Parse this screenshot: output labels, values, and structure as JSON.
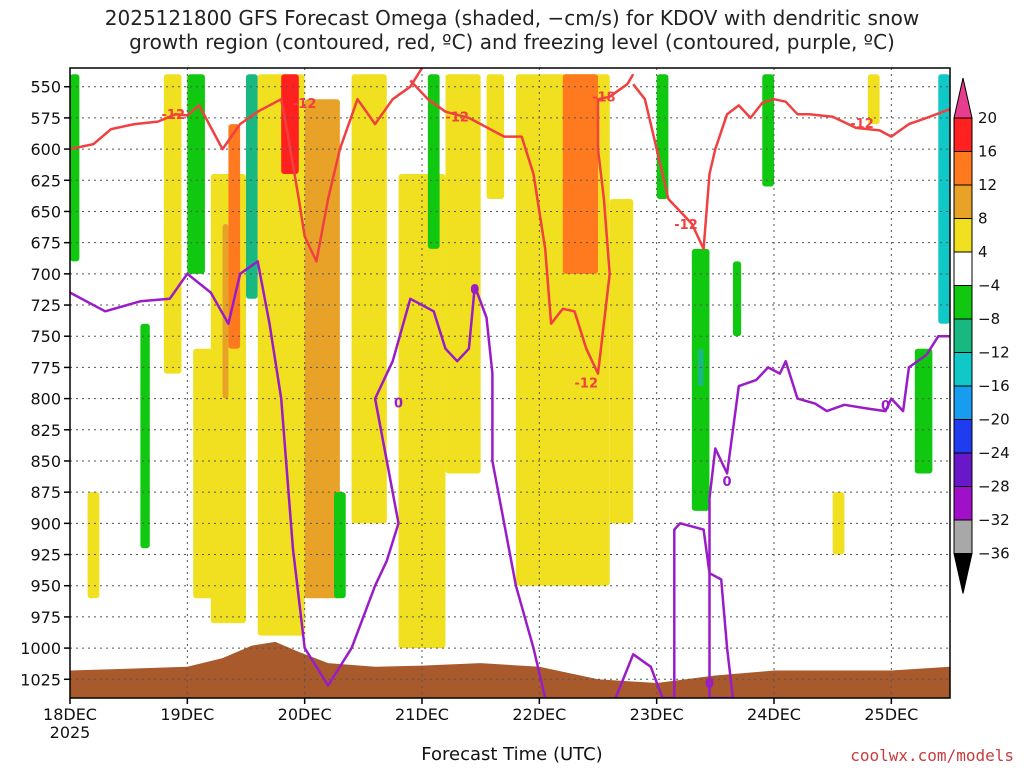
{
  "chart_data": {
    "type": "heatmap",
    "title_lines": [
      "2025121800 GFS Forecast Omega (shaded, −cm/s) for KDOV with dendritic snow",
      "growth region (contoured, red, ºC) and freezing level (contoured, purple, ºC)"
    ],
    "xlabel": "Forecast Time (UTC)",
    "credit": "coolwx.com/models",
    "x_ticks": [
      {
        "label": "18DEC",
        "sub": "2025",
        "day": 0
      },
      {
        "label": "19DEC",
        "day": 1
      },
      {
        "label": "20DEC",
        "day": 2
      },
      {
        "label": "21DEC",
        "day": 3
      },
      {
        "label": "22DEC",
        "day": 4
      },
      {
        "label": "23DEC",
        "day": 5
      },
      {
        "label": "24DEC",
        "day": 6
      },
      {
        "label": "25DEC",
        "day": 7
      }
    ],
    "xlim": [
      0,
      7.5
    ],
    "y_levels": [
      550,
      575,
      600,
      625,
      650,
      675,
      700,
      725,
      750,
      775,
      800,
      825,
      850,
      875,
      900,
      925,
      950,
      975,
      1000,
      1025
    ],
    "ylim": [
      535,
      1040
    ],
    "colorbar": {
      "ticks": [
        "20",
        "16",
        "12",
        "8",
        "4",
        "−4",
        "−8",
        "−12",
        "−16",
        "−20",
        "−24",
        "−28",
        "−32",
        "−36"
      ],
      "colors": [
        "#ff2020",
        "#ff7a1e",
        "#e8a228",
        "#f0e020",
        "#ffffff",
        "#10c810",
        "#18b880",
        "#10c8c8",
        "#189cf0",
        "#1f3cf0",
        "#6818c8",
        "#a010c8",
        "#a8a8a8"
      ],
      "top_arrow_color": "#e83c8c",
      "bottom_arrow_color": "#000000"
    },
    "contour_labels": {
      "dgz": [
        "-12",
        "-12",
        "-12",
        "-18",
        "-12",
        "-12",
        "-12"
      ],
      "freezing": [
        "0",
        "0",
        "0",
        "0",
        "0"
      ]
    },
    "dgz_upper_12": [
      [
        0,
        600
      ],
      [
        0.2,
        596
      ],
      [
        0.35,
        584
      ],
      [
        0.55,
        580
      ],
      [
        0.75,
        578
      ],
      [
        0.9,
        572
      ],
      [
        1.0,
        573
      ],
      [
        1.1,
        565
      ],
      [
        1.3,
        600
      ],
      [
        1.45,
        580
      ],
      [
        1.6,
        570
      ],
      [
        1.8,
        560
      ],
      [
        1.85,
        585
      ],
      [
        1.95,
        640
      ],
      [
        2.0,
        670
      ],
      [
        2.1,
        690
      ],
      [
        2.2,
        640
      ],
      [
        2.3,
        600
      ],
      [
        2.45,
        560
      ],
      [
        2.6,
        580
      ],
      [
        2.75,
        560
      ],
      [
        2.9,
        550
      ],
      [
        3.0,
        535
      ]
    ],
    "dgz_mid_12": [
      [
        2.9,
        545
      ],
      [
        3.05,
        560
      ],
      [
        3.2,
        570
      ],
      [
        3.4,
        575
      ],
      [
        3.5,
        580
      ],
      [
        3.6,
        585
      ],
      [
        3.7,
        590
      ],
      [
        3.85,
        590
      ],
      [
        3.95,
        620
      ],
      [
        4.05,
        680
      ],
      [
        4.1,
        740
      ],
      [
        4.2,
        728
      ],
      [
        4.3,
        730
      ],
      [
        4.4,
        760
      ],
      [
        4.5,
        780
      ],
      [
        4.6,
        700
      ],
      [
        4.55,
        640
      ],
      [
        4.5,
        600
      ],
      [
        4.5,
        560
      ],
      [
        4.6,
        558
      ],
      [
        4.75,
        548
      ],
      [
        4.8,
        540
      ]
    ],
    "dgz_right_12": [
      [
        4.8,
        548
      ],
      [
        4.9,
        560
      ],
      [
        5.0,
        600
      ],
      [
        5.1,
        640
      ],
      [
        5.3,
        660
      ],
      [
        5.4,
        680
      ],
      [
        5.45,
        620
      ],
      [
        5.5,
        600
      ],
      [
        5.6,
        572
      ],
      [
        5.7,
        565
      ],
      [
        5.8,
        575
      ],
      [
        5.9,
        563
      ],
      [
        6.0,
        560
      ],
      [
        6.1,
        562
      ],
      [
        6.2,
        572
      ],
      [
        6.3,
        572
      ],
      [
        6.5,
        574
      ],
      [
        6.7,
        583
      ],
      [
        6.9,
        585
      ],
      [
        7.0,
        590
      ],
      [
        7.15,
        580
      ],
      [
        7.3,
        575
      ],
      [
        7.5,
        568
      ]
    ],
    "freezing_0": [
      [
        0,
        715
      ],
      [
        0.3,
        730
      ],
      [
        0.6,
        722
      ],
      [
        0.85,
        720
      ],
      [
        1.0,
        700
      ],
      [
        1.2,
        715
      ],
      [
        1.35,
        740
      ],
      [
        1.45,
        700
      ],
      [
        1.6,
        690
      ],
      [
        1.7,
        740
      ],
      [
        1.8,
        800
      ],
      [
        1.9,
        920
      ],
      [
        2.0,
        1000
      ],
      [
        2.2,
        1030
      ],
      [
        2.4,
        1000
      ],
      [
        2.6,
        950
      ],
      [
        2.7,
        930
      ],
      [
        2.8,
        900
      ],
      [
        2.6,
        800
      ],
      [
        2.75,
        770
      ],
      [
        2.9,
        720
      ],
      [
        3.1,
        730
      ],
      [
        3.2,
        760
      ],
      [
        3.3,
        770
      ],
      [
        3.4,
        760
      ],
      [
        3.45,
        710
      ],
      [
        3.55,
        735
      ],
      [
        3.6,
        780
      ],
      [
        3.6,
        850
      ],
      [
        3.8,
        950
      ],
      [
        3.95,
        1000
      ],
      [
        4.05,
        1040
      ]
    ],
    "freezing_0_right": [
      [
        4.65,
        1040
      ],
      [
        4.8,
        1005
      ],
      [
        4.95,
        1015
      ],
      [
        5.05,
        1040
      ],
      [
        5.15,
        1040
      ],
      [
        5.15,
        905
      ],
      [
        5.2,
        900
      ],
      [
        5.4,
        905
      ],
      [
        5.45,
        940
      ],
      [
        5.55,
        945
      ],
      [
        5.6,
        1000
      ],
      [
        5.65,
        1040
      ],
      [
        5.45,
        1040
      ],
      [
        5.45,
        880
      ],
      [
        5.5,
        840
      ],
      [
        5.6,
        860
      ],
      [
        5.7,
        790
      ],
      [
        5.85,
        785
      ],
      [
        5.95,
        775
      ],
      [
        6.05,
        780
      ],
      [
        6.1,
        770
      ],
      [
        6.2,
        800
      ],
      [
        6.35,
        804
      ],
      [
        6.45,
        810
      ],
      [
        6.6,
        805
      ],
      [
        6.8,
        808
      ],
      [
        6.95,
        810
      ],
      [
        7.0,
        800
      ],
      [
        7.1,
        810
      ],
      [
        7.15,
        775
      ],
      [
        7.3,
        765
      ],
      [
        7.4,
        750
      ],
      [
        7.5,
        750
      ]
    ],
    "shading_blobs": [
      {
        "x": [
          0.0,
          0.08
        ],
        "y": [
          540,
          690
        ],
        "value": -6
      },
      {
        "x": [
          0.15,
          0.25
        ],
        "y": [
          875,
          960
        ],
        "value": 5
      },
      {
        "x": [
          0.6,
          0.68
        ],
        "y": [
          740,
          920
        ],
        "value": -6
      },
      {
        "x": [
          0.8,
          0.95
        ],
        "y": [
          540,
          780
        ],
        "value": 5
      },
      {
        "x": [
          1.0,
          1.15
        ],
        "y": [
          540,
          700
        ],
        "value": -6
      },
      {
        "x": [
          1.05,
          1.25
        ],
        "y": [
          760,
          960
        ],
        "value": 5
      },
      {
        "x": [
          1.2,
          1.5
        ],
        "y": [
          620,
          980
        ],
        "value": 7
      },
      {
        "x": [
          1.3,
          1.35
        ],
        "y": [
          660,
          800
        ],
        "value": 10
      },
      {
        "x": [
          1.35,
          1.45
        ],
        "y": [
          580,
          760
        ],
        "value": 14
      },
      {
        "x": [
          1.5,
          1.6
        ],
        "y": [
          540,
          720
        ],
        "value": -10
      },
      {
        "x": [
          1.6,
          2.0
        ],
        "y": [
          540,
          990
        ],
        "value": 6
      },
      {
        "x": [
          1.8,
          1.95
        ],
        "y": [
          540,
          620
        ],
        "value": 18
      },
      {
        "x": [
          2.0,
          2.3
        ],
        "y": [
          560,
          960
        ],
        "value": 9
      },
      {
        "x": [
          2.25,
          2.35
        ],
        "y": [
          875,
          960
        ],
        "value": -6
      },
      {
        "x": [
          2.4,
          2.7
        ],
        "y": [
          540,
          900
        ],
        "value": 5
      },
      {
        "x": [
          2.8,
          3.2
        ],
        "y": [
          620,
          1000
        ],
        "value": 5
      },
      {
        "x": [
          3.05,
          3.15
        ],
        "y": [
          540,
          680
        ],
        "value": -6
      },
      {
        "x": [
          3.2,
          3.5
        ],
        "y": [
          540,
          860
        ],
        "value": 5
      },
      {
        "x": [
          3.55,
          3.7
        ],
        "y": [
          540,
          640
        ],
        "value": 5
      },
      {
        "x": [
          3.8,
          4.6
        ],
        "y": [
          540,
          950
        ],
        "value": 6
      },
      {
        "x": [
          4.2,
          4.5
        ],
        "y": [
          540,
          700
        ],
        "value": 13
      },
      {
        "x": [
          4.6,
          4.8
        ],
        "y": [
          640,
          900
        ],
        "value": 5
      },
      {
        "x": [
          5.0,
          5.1
        ],
        "y": [
          540,
          640
        ],
        "value": -6
      },
      {
        "x": [
          5.3,
          5.45
        ],
        "y": [
          680,
          890
        ],
        "value": -6
      },
      {
        "x": [
          5.35,
          5.4
        ],
        "y": [
          760,
          790
        ],
        "value": -10
      },
      {
        "x": [
          5.65,
          5.72
        ],
        "y": [
          690,
          750
        ],
        "value": -6
      },
      {
        "x": [
          5.9,
          6.0
        ],
        "y": [
          540,
          630
        ],
        "value": -6
      },
      {
        "x": [
          6.5,
          6.6
        ],
        "y": [
          875,
          925
        ],
        "value": 5
      },
      {
        "x": [
          6.8,
          6.9
        ],
        "y": [
          540,
          580
        ],
        "value": 5
      },
      {
        "x": [
          7.2,
          7.35
        ],
        "y": [
          760,
          860
        ],
        "value": -6
      },
      {
        "x": [
          7.4,
          7.5
        ],
        "y": [
          540,
          740
        ],
        "value": -14
      }
    ],
    "terrain_color": "#a85a2c"
  }
}
